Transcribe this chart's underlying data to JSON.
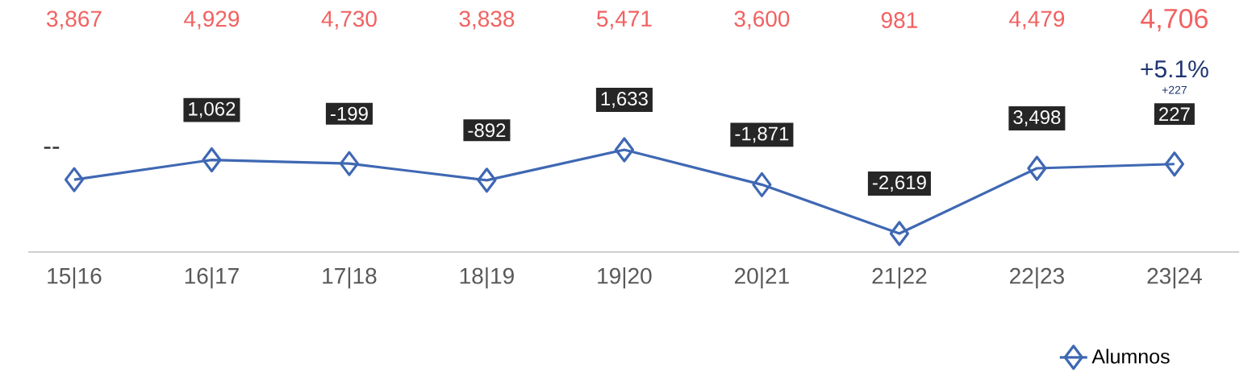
{
  "chart_data": {
    "type": "line",
    "categories": [
      "15|16",
      "16|17",
      "17|18",
      "18|19",
      "19|20",
      "20|21",
      "21|22",
      "22|23",
      "23|24"
    ],
    "series": [
      {
        "name": "Alumnos",
        "color": "#3f68b3",
        "values": [
          3867,
          4929,
          4730,
          3838,
          5471,
          3600,
          981,
          4479,
          4706
        ],
        "value_labels": [
          "3,867",
          "4,929",
          "4,730",
          "3,838",
          "5,471",
          "3,600",
          "981",
          "4,479",
          "4,706"
        ]
      }
    ],
    "tick_labels": "x",
    "marker": "diamond",
    "legend": "bottom right",
    "annotations": [
      {
        "text": "1,062",
        "x": "16|17",
        "y": 4929
      },
      {
        "text": "-199",
        "x": "17|18",
        "y": 4730
      },
      {
        "text": "-892",
        "x": "18|19",
        "y": 3838
      },
      {
        "text": "1,633",
        "x": "19|20",
        "y": 5471
      },
      {
        "text": "-1,871",
        "x": "20|21",
        "y": 3600
      },
      {
        "text": "-2,619",
        "x": "21|22",
        "y": 981
      },
      {
        "text": "3,498",
        "x": "22|23",
        "y": 4479
      },
      {
        "text": "227",
        "x": "23|24",
        "y": 4706
      },
      "--",
      "+5.1%",
      "+227"
    ]
  }
}
